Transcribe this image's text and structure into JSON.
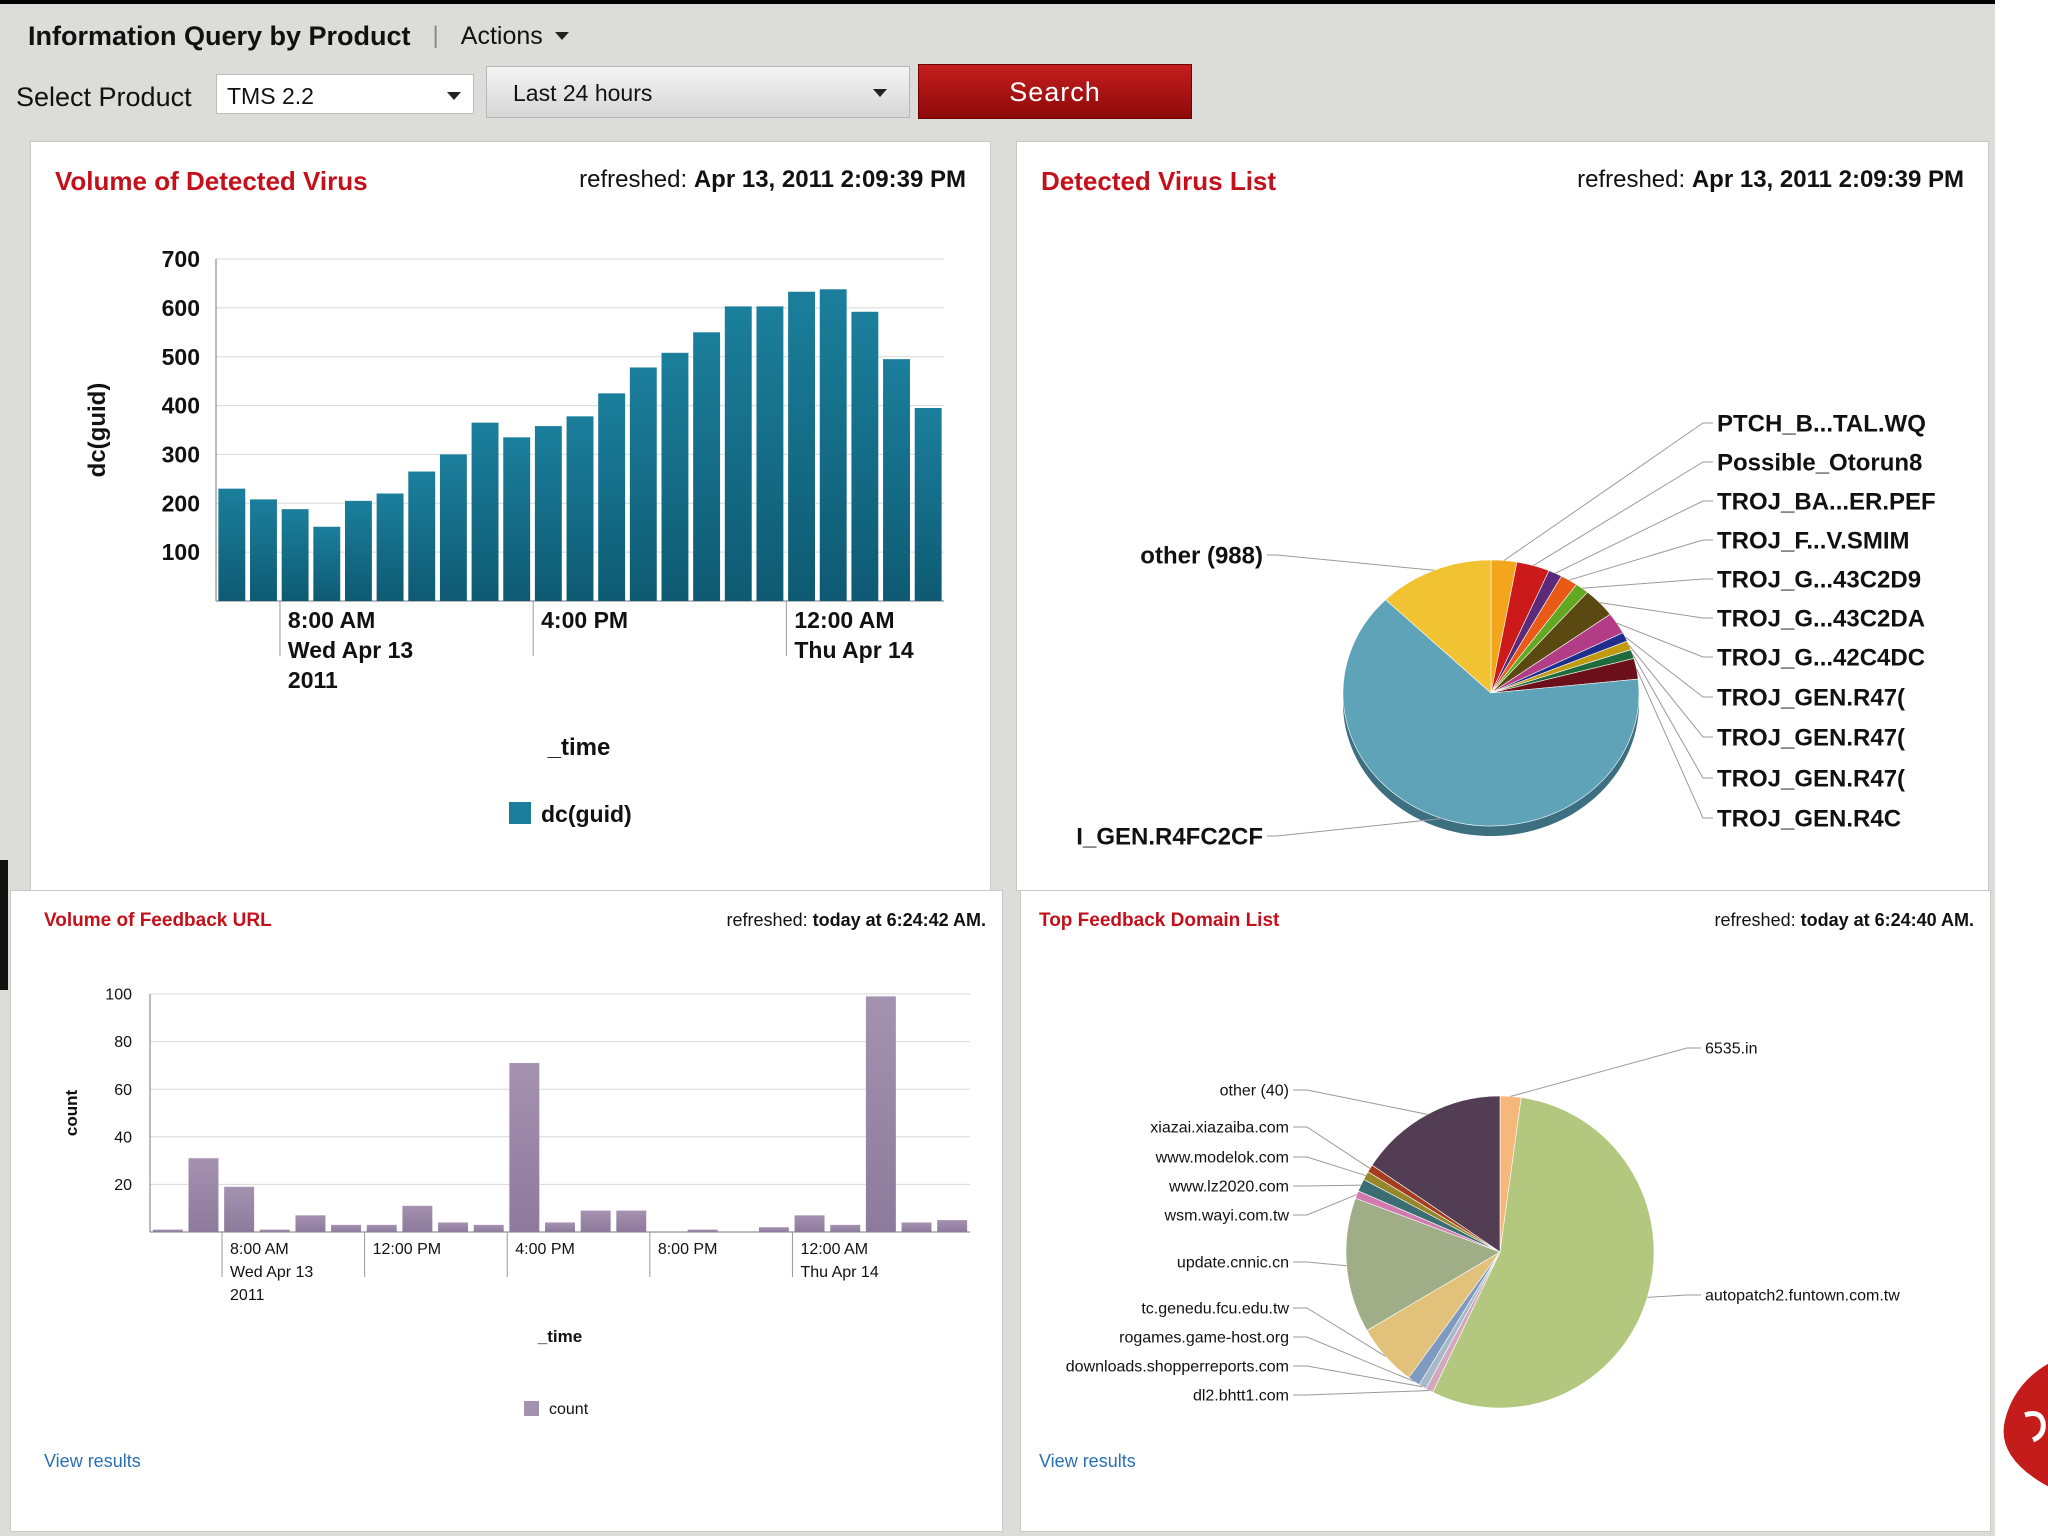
{
  "header": {
    "title": "Information Query by Product",
    "separator": "|",
    "actions_label": "Actions"
  },
  "controls": {
    "product_label": "Select Product",
    "product_value": "TMS 2.2",
    "time_range_value": "Last 24 hours",
    "search_label": "Search"
  },
  "panels": {
    "virus_volume": {
      "title": "Volume of Detected Virus",
      "refreshed_prefix": "refreshed:",
      "refreshed_value": "Apr 13, 2011 2:09:39 PM"
    },
    "virus_list": {
      "title": "Detected Virus List",
      "refreshed_prefix": "refreshed:",
      "refreshed_value": "Apr 13, 2011 2:09:39 PM"
    },
    "url_volume": {
      "title": "Volume of Feedback URL",
      "refreshed_prefix": "refreshed:",
      "refreshed_value": "today at 6:24:42 AM.",
      "view_results": "View results"
    },
    "domain_list": {
      "title": "Top Feedback Domain List",
      "refreshed_prefix": "refreshed:",
      "refreshed_value": "today at 6:24:40 AM.",
      "view_results": "View results"
    }
  },
  "chart_data": [
    {
      "id": "virus_volume",
      "type": "bar",
      "ylabel": "dc(guid)",
      "xlabel": "_time",
      "ylim": [
        0,
        700
      ],
      "yticks": [
        100,
        200,
        300,
        400,
        500,
        600,
        700
      ],
      "grid": true,
      "legend": [
        "dc(guid)"
      ],
      "legend_position": "bottom",
      "color": "#1b7f9c",
      "values": [
        230,
        208,
        188,
        152,
        205,
        220,
        265,
        300,
        365,
        335,
        358,
        378,
        425,
        478,
        508,
        550,
        603,
        603,
        633,
        638,
        592,
        495,
        395
      ],
      "xticks": [
        {
          "index": 2,
          "lines": [
            "8:00 AM",
            "Wed Apr 13",
            "2011"
          ]
        },
        {
          "index": 10,
          "lines": [
            "4:00 PM"
          ]
        },
        {
          "index": 18,
          "lines": [
            "12:00 AM",
            "Thu Apr 14"
          ]
        }
      ]
    },
    {
      "id": "virus_list",
      "type": "pie",
      "slices": [
        {
          "label": "PTCH_B...TAL.WQ",
          "value": 2.8,
          "color": "#f3a51c"
        },
        {
          "label": "Possible_Otorun8",
          "value": 3.6,
          "color": "#cc1a1a"
        },
        {
          "label": "TROJ_BA...ER.PEF",
          "value": 1.5,
          "color": "#5c2a7a"
        },
        {
          "label": "TROJ_F...V.SMIM",
          "value": 1.9,
          "color": "#e85a16"
        },
        {
          "label": "TROJ_G...43C2D9",
          "value": 1.5,
          "color": "#62a820"
        },
        {
          "label": "TROJ_G...43C2DA",
          "value": 3.6,
          "color": "#5a4a12"
        },
        {
          "label": "TROJ_G...42C4DC",
          "value": 2.6,
          "color": "#b33c86"
        },
        {
          "label": "TROJ_GEN.R47(",
          "value": 1.1,
          "color": "#1e2e8c"
        },
        {
          "label": "TROJ_GEN.R47(",
          "value": 1.1,
          "color": "#c29a12"
        },
        {
          "label": "TROJ_GEN.R47(",
          "value": 1.1,
          "color": "#1e6b3c"
        },
        {
          "label": "TROJ_GEN.R4C",
          "value": 2.5,
          "color": "#6b0f1a"
        },
        {
          "label": "I_GEN.R4FC2CF",
          "value": 64,
          "color": "#5fa3b8"
        },
        {
          "label": "other (988)",
          "value": 12.6,
          "color": "#f1c232"
        }
      ]
    },
    {
      "id": "url_volume",
      "type": "bar",
      "ylabel": "count",
      "xlabel": "_time",
      "ylim": [
        0,
        100
      ],
      "yticks": [
        20,
        40,
        60,
        80,
        100
      ],
      "grid": true,
      "legend": [
        "count"
      ],
      "legend_position": "bottom",
      "color": "#a592b0",
      "values": [
        1,
        31,
        19,
        1,
        7,
        3,
        3,
        11,
        4,
        3,
        71,
        4,
        9,
        9,
        0,
        1,
        0,
        2,
        7,
        3,
        99,
        4,
        5
      ],
      "xticks": [
        {
          "index": 2,
          "lines": [
            "8:00 AM",
            "Wed Apr 13",
            "2011"
          ]
        },
        {
          "index": 6,
          "lines": [
            "12:00 PM"
          ]
        },
        {
          "index": 10,
          "lines": [
            "4:00 PM"
          ]
        },
        {
          "index": 14,
          "lines": [
            "8:00 PM"
          ]
        },
        {
          "index": 18,
          "lines": [
            "12:00 AM",
            "Thu Apr 14"
          ]
        }
      ]
    },
    {
      "id": "domain_list",
      "type": "pie",
      "slices": [
        {
          "label": "6535.in",
          "value": 2.2,
          "color": "#f6b87a"
        },
        {
          "label": "autopatch2.funtown.com.tw",
          "value": 55,
          "color": "#b3c77f"
        },
        {
          "label": "dl2.bhtt1.com",
          "value": 0.8,
          "color": "#d4a7bd"
        },
        {
          "label": "downloads.shopperreports.com",
          "value": 0.8,
          "color": "#a5b9c8"
        },
        {
          "label": "rogames.game-host.org",
          "value": 1.3,
          "color": "#7f9ac0"
        },
        {
          "label": "tc.genedu.fcu.edu.tw",
          "value": 6.5,
          "color": "#e2c27b"
        },
        {
          "label": "update.cnnic.cn",
          "value": 14,
          "color": "#9fae86"
        },
        {
          "label": "wsm.wayi.com.tw",
          "value": 0.8,
          "color": "#d07ab0"
        },
        {
          "label": "www.lz2020.com",
          "value": 1.3,
          "color": "#3b6e72"
        },
        {
          "label": "www.modelok.com",
          "value": 0.9,
          "color": "#96872c"
        },
        {
          "label": "xiazai.xiazaiba.com",
          "value": 0.8,
          "color": "#a43d20"
        },
        {
          "label": "other (40)",
          "value": 15.6,
          "color": "#533d55"
        }
      ]
    }
  ]
}
